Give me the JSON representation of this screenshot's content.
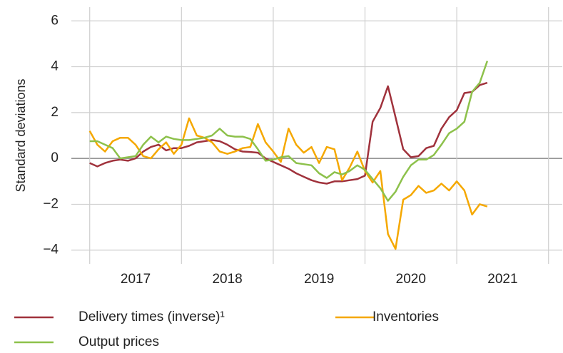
{
  "chart_data": {
    "type": "line",
    "ylabel": "Standard deviations",
    "x": [
      2017.0,
      2017.083,
      2017.167,
      2017.25,
      2017.333,
      2017.417,
      2017.5,
      2017.583,
      2017.667,
      2017.75,
      2017.833,
      2017.917,
      2018.0,
      2018.083,
      2018.167,
      2018.25,
      2018.333,
      2018.417,
      2018.5,
      2018.583,
      2018.667,
      2018.75,
      2018.833,
      2018.917,
      2019.0,
      2019.083,
      2019.167,
      2019.25,
      2019.333,
      2019.417,
      2019.5,
      2019.583,
      2019.667,
      2019.75,
      2019.833,
      2019.917,
      2020.0,
      2020.083,
      2020.167,
      2020.25,
      2020.333,
      2020.417,
      2020.5,
      2020.583,
      2020.667,
      2020.75,
      2020.833,
      2020.917,
      2021.0,
      2021.083,
      2021.167,
      2021.25,
      2021.333
    ],
    "series": [
      {
        "name": "Delivery times (inverse)¹",
        "color": "#a0323c",
        "values": [
          -0.2,
          -0.35,
          -0.2,
          -0.1,
          -0.05,
          -0.1,
          0.0,
          0.3,
          0.5,
          0.6,
          0.35,
          0.45,
          0.45,
          0.55,
          0.7,
          0.75,
          0.8,
          0.75,
          0.6,
          0.4,
          0.3,
          0.28,
          0.25,
          0.0,
          -0.15,
          -0.3,
          -0.45,
          -0.65,
          -0.8,
          -0.95,
          -1.05,
          -1.1,
          -1.0,
          -1.0,
          -0.95,
          -0.9,
          -0.75,
          1.6,
          2.2,
          3.15,
          1.8,
          0.4,
          0.05,
          0.1,
          0.45,
          0.55,
          1.3,
          1.8,
          2.1,
          2.85,
          2.9,
          3.2,
          3.3
        ]
      },
      {
        "name": "Inventories",
        "color": "#f5a800",
        "values": [
          1.2,
          0.6,
          0.3,
          0.75,
          0.9,
          0.9,
          0.6,
          0.1,
          0.0,
          0.4,
          0.7,
          0.2,
          0.6,
          1.75,
          1.0,
          0.9,
          0.7,
          0.3,
          0.2,
          0.3,
          0.45,
          0.5,
          1.5,
          0.7,
          0.3,
          -0.15,
          1.3,
          0.6,
          0.25,
          0.5,
          -0.2,
          0.5,
          0.4,
          -0.95,
          -0.4,
          0.3,
          -0.55,
          -1.05,
          -0.55,
          -3.3,
          -3.95,
          -1.8,
          -1.6,
          -1.2,
          -1.5,
          -1.4,
          -1.1,
          -1.4,
          -1.0,
          -1.4,
          -2.45,
          -2.0,
          -2.1
        ]
      },
      {
        "name": "Output prices",
        "color": "#8dc14b",
        "values": [
          0.75,
          0.75,
          0.6,
          0.45,
          0.0,
          0.05,
          0.1,
          0.6,
          0.95,
          0.7,
          0.95,
          0.85,
          0.8,
          0.8,
          0.85,
          0.9,
          1.0,
          1.3,
          1.0,
          0.95,
          0.95,
          0.85,
          0.4,
          -0.1,
          -0.05,
          0.05,
          0.1,
          -0.2,
          -0.25,
          -0.3,
          -0.65,
          -0.85,
          -0.6,
          -0.7,
          -0.55,
          -0.3,
          -0.5,
          -0.9,
          -1.3,
          -1.85,
          -1.45,
          -0.8,
          -0.3,
          -0.05,
          -0.05,
          0.15,
          0.6,
          1.1,
          1.3,
          1.6,
          2.9,
          3.3,
          4.25
        ]
      }
    ],
    "xlim": [
      2016.8,
      2022.15
    ],
    "xticks": [
      {
        "value": 2017.5,
        "label": "2017"
      },
      {
        "value": 2018.5,
        "label": "2018"
      },
      {
        "value": 2019.5,
        "label": "2019"
      },
      {
        "value": 2020.5,
        "label": "2020"
      },
      {
        "value": 2021.5,
        "label": "2021"
      }
    ],
    "xgrid": [
      2017,
      2018,
      2019,
      2020,
      2021,
      2022
    ],
    "ylim": [
      -4.6,
      6.6
    ],
    "yticks": [
      {
        "value": -4,
        "label": "−4"
      },
      {
        "value": -2,
        "label": "−2"
      },
      0,
      2,
      4,
      6
    ],
    "grid": true
  }
}
